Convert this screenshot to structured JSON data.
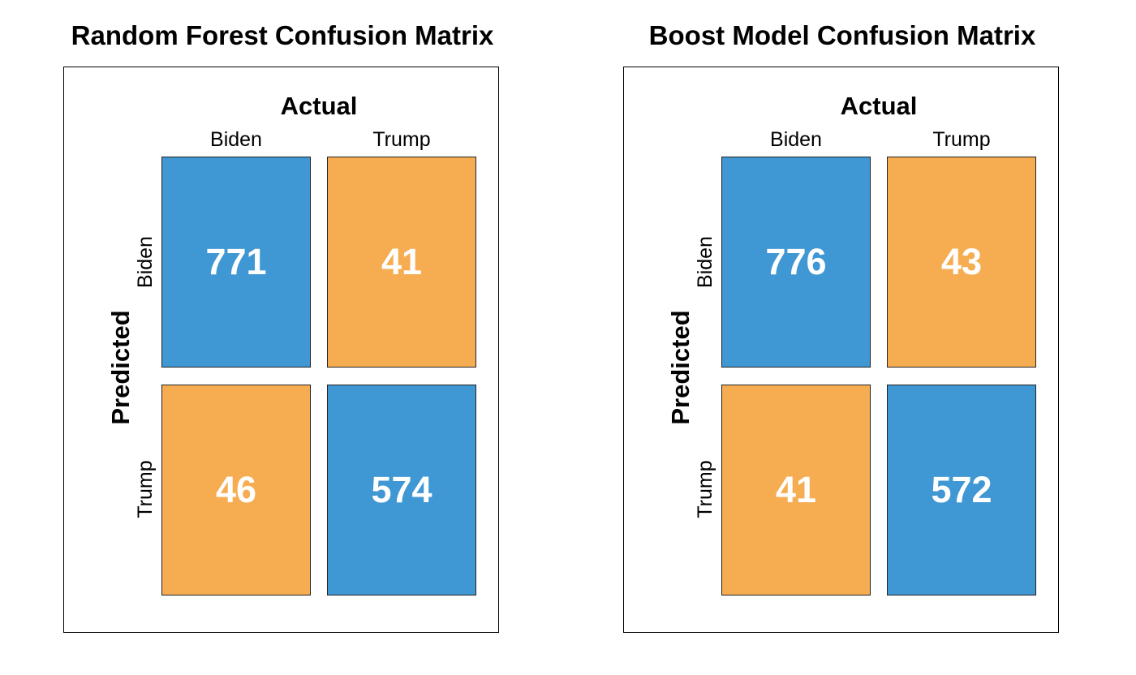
{
  "chart_data": [
    {
      "type": "heatmap",
      "title": "Random Forest Confusion Matrix",
      "xlabel": "Actual",
      "ylabel": "Predicted",
      "x_categories": [
        "Biden",
        "Trump"
      ],
      "y_categories": [
        "Biden",
        "Trump"
      ],
      "values": [
        [
          771,
          41
        ],
        [
          46,
          574
        ]
      ],
      "colors": {
        "correct": "#3f97d3",
        "incorrect": "#f6ad52"
      }
    },
    {
      "type": "heatmap",
      "title": "Boost Model Confusion Matrix",
      "xlabel": "Actual",
      "ylabel": "Predicted",
      "x_categories": [
        "Biden",
        "Trump"
      ],
      "y_categories": [
        "Biden",
        "Trump"
      ],
      "values": [
        [
          776,
          43
        ],
        [
          41,
          572
        ]
      ],
      "colors": {
        "correct": "#3f97d3",
        "incorrect": "#f6ad52"
      }
    }
  ]
}
